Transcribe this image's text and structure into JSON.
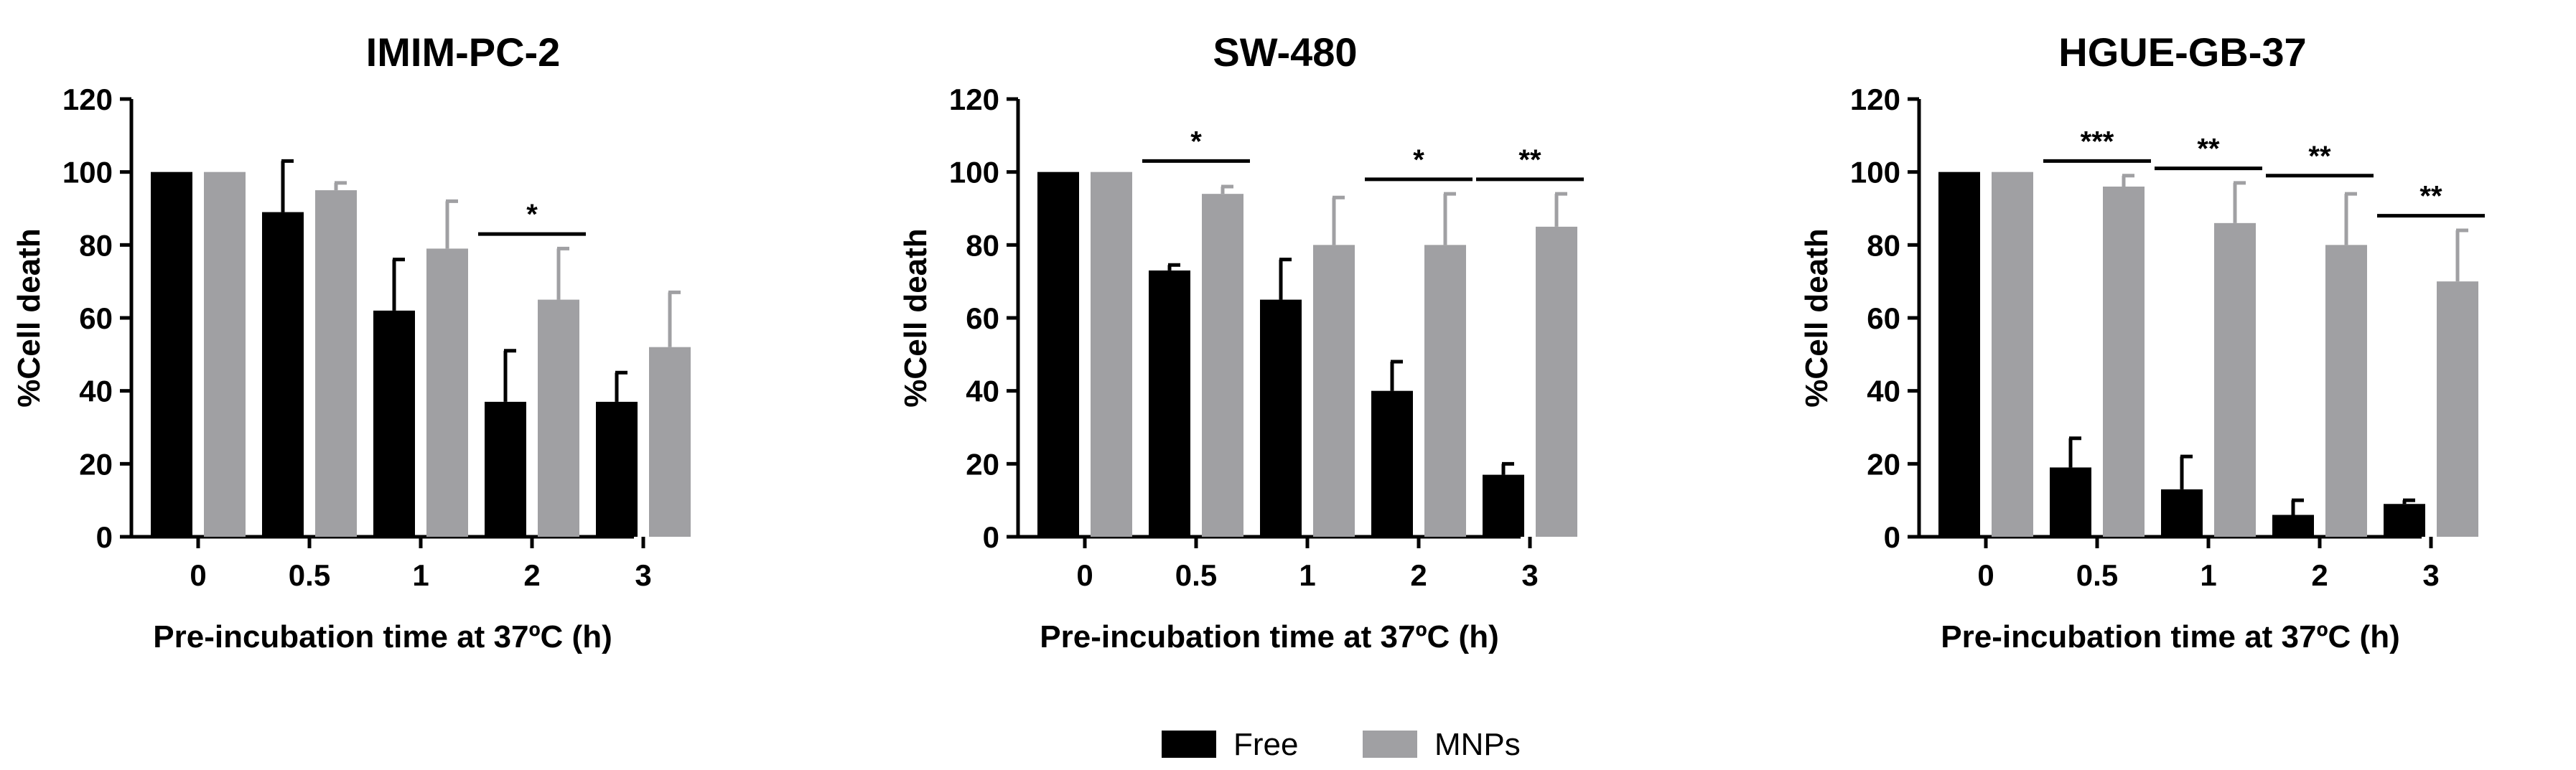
{
  "legend": {
    "items": [
      {
        "label": "Free",
        "color": "#000000"
      },
      {
        "label": "MNPs",
        "color": "#a0a0a3"
      }
    ]
  },
  "chart_data": [
    {
      "type": "bar",
      "title": "IMIM-PC-2",
      "xlabel": "Pre-incubation time at 37ºC (h)",
      "ylabel": "%Cell death",
      "categories": [
        "0",
        "0.5",
        "1",
        "2",
        "3"
      ],
      "ylim": [
        0,
        120
      ],
      "yticks": [
        0,
        20,
        40,
        60,
        80,
        100,
        120
      ],
      "series": [
        {
          "name": "Free",
          "values": [
            100,
            89,
            62,
            37,
            37
          ],
          "errors": [
            0,
            14,
            14,
            14,
            8
          ]
        },
        {
          "name": "MNPs",
          "values": [
            100,
            95,
            79,
            65,
            52
          ],
          "errors": [
            0,
            2,
            13,
            14,
            15
          ]
        }
      ],
      "significance": [
        {
          "category": "2",
          "label": "*",
          "y": 83
        }
      ]
    },
    {
      "type": "bar",
      "title": "SW-480",
      "xlabel": "Pre-incubation time at 37ºC (h)",
      "ylabel": "%Cell death",
      "categories": [
        "0",
        "0.5",
        "1",
        "2",
        "3"
      ],
      "ylim": [
        0,
        120
      ],
      "yticks": [
        0,
        20,
        40,
        60,
        80,
        100,
        120
      ],
      "series": [
        {
          "name": "Free",
          "values": [
            100,
            73,
            65,
            40,
            17
          ],
          "errors": [
            0,
            1.5,
            11,
            8,
            3
          ]
        },
        {
          "name": "MNPs",
          "values": [
            100,
            94,
            80,
            80,
            85
          ],
          "errors": [
            0,
            2,
            13,
            14,
            9
          ]
        }
      ],
      "significance": [
        {
          "category": "0.5",
          "label": "*",
          "y": 103
        },
        {
          "category": "2",
          "label": "*",
          "y": 98
        },
        {
          "category": "3",
          "label": "**",
          "y": 98
        }
      ]
    },
    {
      "type": "bar",
      "title": "HGUE-GB-37",
      "xlabel": "Pre-incubation time at 37ºC (h)",
      "ylabel": "%Cell death",
      "categories": [
        "0",
        "0.5",
        "1",
        "2",
        "3"
      ],
      "ylim": [
        0,
        120
      ],
      "yticks": [
        0,
        20,
        40,
        60,
        80,
        100,
        120
      ],
      "series": [
        {
          "name": "Free",
          "values": [
            100,
            19,
            13,
            6,
            9
          ],
          "errors": [
            0,
            8,
            9,
            4,
            1
          ]
        },
        {
          "name": "MNPs",
          "values": [
            100,
            96,
            86,
            80,
            70
          ],
          "errors": [
            0,
            3,
            11,
            14,
            14
          ]
        }
      ],
      "significance": [
        {
          "category": "0.5",
          "label": "***",
          "y": 103
        },
        {
          "category": "1",
          "label": "**",
          "y": 101
        },
        {
          "category": "2",
          "label": "**",
          "y": 99
        },
        {
          "category": "3",
          "label": "**",
          "y": 88
        }
      ]
    }
  ]
}
